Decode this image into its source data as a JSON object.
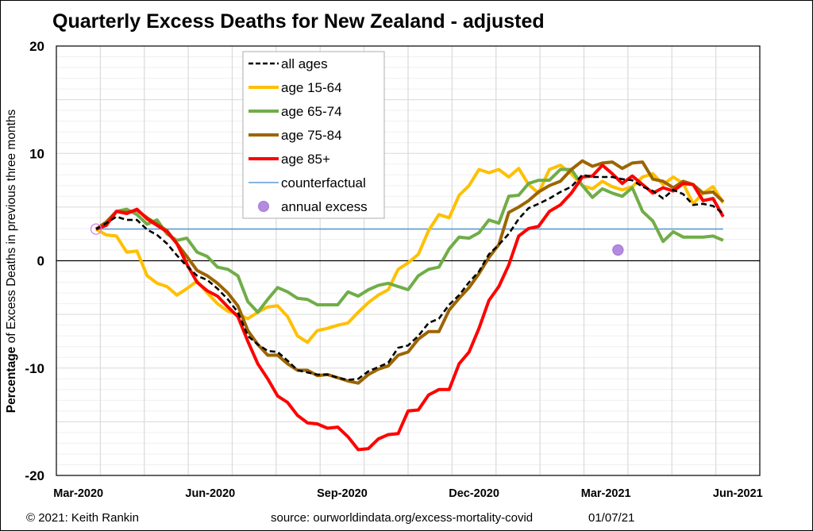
{
  "title": "Quarterly Excess Deaths for New Zealand - adjusted",
  "footer": {
    "copyright": "© 2021: Keith Rankin",
    "source": "source: ourworldindata.org/excess-mortality-covid",
    "date": "01/07/21"
  },
  "chart_data": {
    "type": "line",
    "title": "Quarterly Excess Deaths for New Zealand - adjusted",
    "xlabel": "",
    "ylabel_parts": [
      "Percentage",
      "of Excess Deaths in previous three months"
    ],
    "ylim": [
      -20,
      20
    ],
    "yticks": [
      "20",
      "10",
      "0",
      "-10",
      "-20"
    ],
    "ytick_values": [
      20,
      10,
      0,
      -10,
      -20
    ],
    "xlim": [
      "2020-03-01",
      "2021-07-01"
    ],
    "xticks": [
      "Mar-2020",
      "Jun-2020",
      "Sep-2020",
      "Dec-2020",
      "Mar-2021",
      "Jun-2021"
    ],
    "xtick_months": [
      "2020-03",
      "2020-06",
      "2020-09",
      "2020-12",
      "2021-03",
      "2021-06"
    ],
    "grid": true,
    "legend_position": "top-center",
    "x": [
      "2020-03-29",
      "2020-04-05",
      "2020-04-12",
      "2020-04-19",
      "2020-04-26",
      "2020-05-03",
      "2020-05-10",
      "2020-05-17",
      "2020-05-24",
      "2020-05-31",
      "2020-06-07",
      "2020-06-14",
      "2020-06-21",
      "2020-06-28",
      "2020-07-05",
      "2020-07-12",
      "2020-07-19",
      "2020-07-26",
      "2020-08-02",
      "2020-08-09",
      "2020-08-16",
      "2020-08-23",
      "2020-08-30",
      "2020-09-06",
      "2020-09-13",
      "2020-09-20",
      "2020-09-27",
      "2020-10-04",
      "2020-10-11",
      "2020-10-18",
      "2020-10-25",
      "2020-11-01",
      "2020-11-08",
      "2020-11-15",
      "2020-11-22",
      "2020-11-29",
      "2020-12-06",
      "2020-12-13",
      "2020-12-20",
      "2020-12-27",
      "2021-01-03",
      "2021-01-10",
      "2021-01-17",
      "2021-01-24",
      "2021-01-31",
      "2021-02-07",
      "2021-02-14",
      "2021-02-21",
      "2021-02-28",
      "2021-03-07",
      "2021-03-14",
      "2021-03-21",
      "2021-03-28",
      "2021-04-04",
      "2021-04-11",
      "2021-04-18",
      "2021-04-25",
      "2021-05-02",
      "2021-05-09",
      "2021-05-16",
      "2021-05-23",
      "2021-05-30",
      "2021-06-06"
    ],
    "series": [
      {
        "name": "age 15-64",
        "color": "#FFC000",
        "style": "solid",
        "values": [
          2.95,
          2.4,
          2.3,
          0.8,
          0.9,
          -1.4,
          -2.1,
          -2.4,
          -3.2,
          -2.6,
          -1.9,
          -3.0,
          -4.0,
          -4.7,
          -5.0,
          -5.4,
          -4.8,
          -4.3,
          -4.2,
          -5.2,
          -7.0,
          -7.6,
          -6.5,
          -6.3,
          -6.0,
          -5.8,
          -4.8,
          -3.9,
          -3.2,
          -2.7,
          -0.8,
          -0.2,
          0.6,
          2.8,
          4.3,
          4.0,
          6.1,
          7.0,
          8.5,
          8.2,
          8.5,
          7.8,
          8.6,
          7.1,
          6.3,
          8.5,
          8.9,
          8.1,
          7.0,
          6.7,
          7.4,
          6.9,
          6.6,
          6.9,
          7.8,
          8.1,
          7.1,
          7.8,
          7.2,
          5.3,
          6.3,
          6.9,
          5.4
        ]
      },
      {
        "name": "age 65-74",
        "color": "#70AD47",
        "style": "solid",
        "values": [
          2.95,
          3.3,
          4.6,
          4.8,
          4.3,
          3.4,
          3.8,
          2.5,
          1.9,
          2.1,
          0.8,
          0.4,
          -0.6,
          -0.8,
          -1.4,
          -3.8,
          -4.8,
          -3.6,
          -2.5,
          -2.9,
          -3.5,
          -3.6,
          -4.1,
          -4.1,
          -4.1,
          -2.9,
          -3.3,
          -2.7,
          -2.3,
          -2.1,
          -2.4,
          -2.7,
          -1.4,
          -0.8,
          -0.6,
          1.1,
          2.2,
          2.1,
          2.6,
          3.8,
          3.5,
          6.0,
          6.1,
          7.2,
          7.5,
          7.5,
          8.5,
          8.5,
          7.0,
          5.9,
          6.7,
          6.3,
          6.0,
          6.8,
          4.6,
          3.7,
          1.8,
          2.7,
          2.2,
          2.2,
          2.2,
          2.3,
          1.9
        ]
      },
      {
        "name": "age 75-84",
        "color": "#9C6500",
        "style": "solid",
        "values": [
          2.95,
          3.6,
          4.6,
          4.5,
          4.7,
          4.0,
          3.4,
          2.8,
          1.6,
          0.4,
          -0.9,
          -1.4,
          -2.1,
          -3.0,
          -4.2,
          -6.5,
          -7.8,
          -8.8,
          -8.8,
          -9.6,
          -10.2,
          -10.2,
          -10.7,
          -10.6,
          -10.9,
          -11.2,
          -11.4,
          -10.6,
          -10.1,
          -9.8,
          -8.8,
          -8.5,
          -7.3,
          -6.6,
          -6.6,
          -4.6,
          -3.5,
          -2.5,
          -1.2,
          0.3,
          1.5,
          4.5,
          5.0,
          5.6,
          6.4,
          7.0,
          7.4,
          8.5,
          9.3,
          8.8,
          9.1,
          9.2,
          8.6,
          9.1,
          9.2,
          7.6,
          7.4,
          6.8,
          7.4,
          7.1,
          6.3,
          6.4,
          5.5
        ]
      },
      {
        "name": "age 85+",
        "color": "#FF0000",
        "style": "solid",
        "values": [
          2.95,
          3.3,
          4.6,
          4.4,
          4.8,
          3.9,
          3.3,
          2.7,
          1.6,
          -0.3,
          -2.0,
          -2.8,
          -3.3,
          -4.3,
          -5.2,
          -7.5,
          -9.6,
          -11.0,
          -12.6,
          -13.2,
          -14.4,
          -15.1,
          -15.2,
          -15.6,
          -15.5,
          -16.4,
          -17.6,
          -17.5,
          -16.6,
          -16.2,
          -16.1,
          -14.0,
          -13.9,
          -12.5,
          -12.0,
          -12.0,
          -9.6,
          -8.5,
          -6.3,
          -3.7,
          -2.4,
          -0.4,
          2.3,
          3.0,
          3.2,
          4.6,
          5.2,
          6.3,
          7.8,
          7.9,
          8.9,
          8.1,
          7.2,
          7.9,
          7.1,
          6.3,
          6.8,
          6.5,
          7.2,
          7.1,
          5.6,
          5.8,
          4.1
        ]
      },
      {
        "name": "all ages",
        "color": "#000000",
        "style": "dashed",
        "values": [
          2.95,
          3.5,
          4.1,
          3.8,
          3.8,
          2.9,
          2.4,
          1.6,
          0.5,
          -0.5,
          -1.4,
          -1.8,
          -2.6,
          -3.6,
          -4.8,
          -7.0,
          -7.8,
          -8.4,
          -8.5,
          -9.3,
          -10.2,
          -10.4,
          -10.6,
          -10.6,
          -10.9,
          -11.1,
          -11.0,
          -10.3,
          -9.9,
          -9.5,
          -8.1,
          -7.9,
          -7.0,
          -5.8,
          -5.4,
          -4.1,
          -3.2,
          -2.0,
          -1.0,
          0.6,
          1.5,
          2.5,
          3.9,
          4.9,
          5.3,
          5.8,
          6.4,
          6.9,
          8.0,
          7.8,
          7.8,
          7.8,
          7.6,
          7.5,
          6.9,
          6.5,
          5.8,
          6.6,
          6.2,
          5.2,
          5.3,
          5.1,
          4.4
        ]
      }
    ],
    "counterfactual": {
      "name": "counterfactual",
      "color": "#5B9BD5",
      "value": 2.95,
      "from": "2020-03-29",
      "to": "2021-06-06"
    },
    "annual_excess": {
      "name": "annual excess",
      "color": "#A678D8",
      "points": [
        {
          "date": "2020-03-29",
          "value": 2.95,
          "hollow": true
        },
        {
          "date": "2021-03-25",
          "value": 1.0,
          "hollow": false
        }
      ]
    },
    "legend": [
      {
        "label": "all ages",
        "color": "#000000",
        "kind": "dashed"
      },
      {
        "label": "age 15-64",
        "color": "#FFC000",
        "kind": "thick"
      },
      {
        "label": "age 65-74",
        "color": "#70AD47",
        "kind": "thick"
      },
      {
        "label": "age 75-84",
        "color": "#9C6500",
        "kind": "thick"
      },
      {
        "label": "age 85+",
        "color": "#FF0000",
        "kind": "thick"
      },
      {
        "label": "counterfactual",
        "color": "#5B9BD5",
        "kind": "thin"
      },
      {
        "label": "annual excess",
        "color": "#A678D8",
        "kind": "marker"
      }
    ]
  }
}
